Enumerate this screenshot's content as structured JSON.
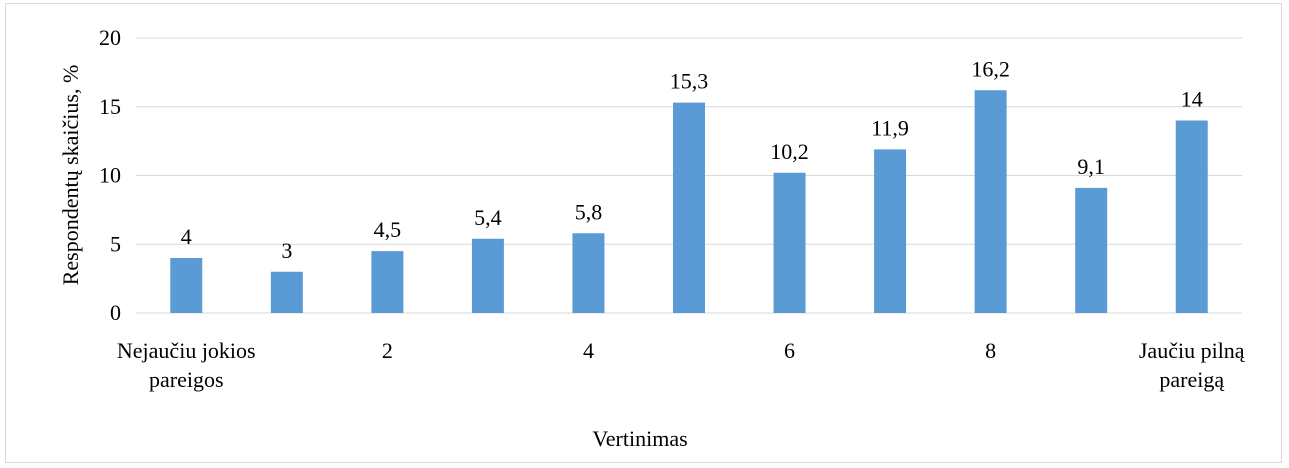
{
  "chart_data": {
    "type": "bar",
    "categories": [
      "Nejaučiu jokios pareigos",
      "",
      "2",
      "",
      "4",
      "",
      "6",
      "",
      "8",
      "",
      "Jaučiu pilną pareigą"
    ],
    "values": [
      4,
      3,
      4.5,
      5.4,
      5.8,
      15.3,
      10.2,
      11.9,
      16.2,
      9.1,
      14
    ],
    "data_labels": [
      "4",
      "3",
      "4,5",
      "5,4",
      "5,8",
      "15,3",
      "10,2",
      "11,9",
      "16,2",
      "9,1",
      "14"
    ],
    "y_ticks": [
      "0",
      "5",
      "10",
      "15",
      "20"
    ],
    "y_tick_values": [
      0,
      5,
      10,
      15,
      20
    ],
    "x_tick_labels": [
      {
        "index": 0,
        "lines": [
          "Nejaučiu jokios",
          "pareigos"
        ]
      },
      {
        "index": 2,
        "lines": [
          "2"
        ]
      },
      {
        "index": 4,
        "lines": [
          "4"
        ]
      },
      {
        "index": 6,
        "lines": [
          "6"
        ]
      },
      {
        "index": 8,
        "lines": [
          "8"
        ]
      },
      {
        "index": 10,
        "lines": [
          "Jaučiu pilną",
          "pareigą"
        ]
      }
    ],
    "xlabel": "Vertinimas",
    "ylabel": "Respondentų skaičius, %",
    "ylim": [
      0,
      20
    ],
    "grid": true,
    "legend": "none",
    "bar_color": "#5b9bd5",
    "grid_color": "#d9d9d9"
  }
}
